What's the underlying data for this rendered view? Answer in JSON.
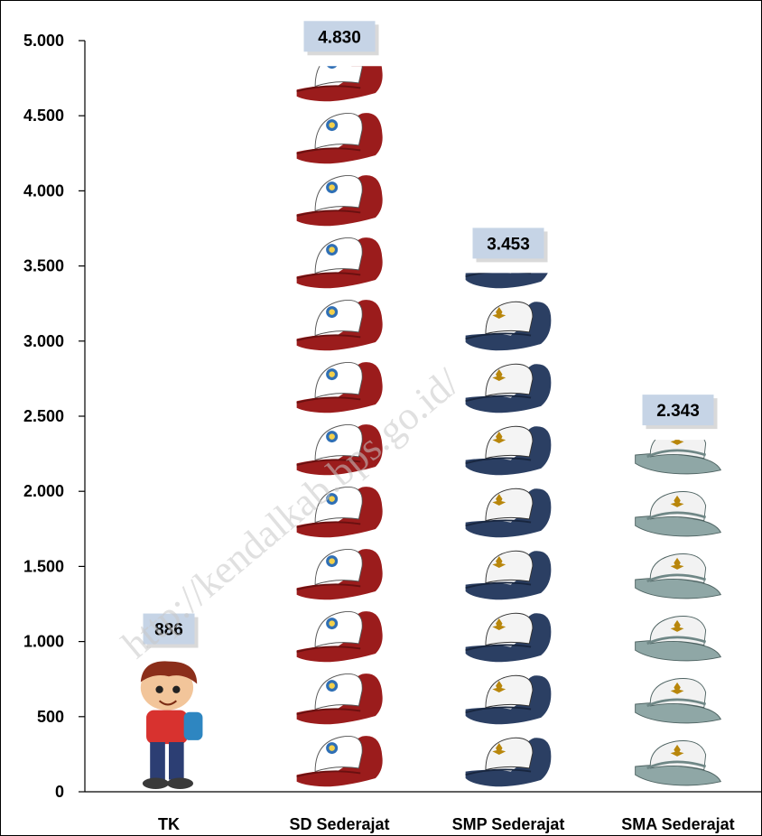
{
  "watermark": "http://kendalkab.bps.go.id/",
  "chart_data": {
    "type": "bar",
    "title": "",
    "xlabel": "",
    "ylabel": "",
    "categories": [
      "TK",
      "SD Sederajat",
      "SMP Sederajat",
      "SMA Sederajat"
    ],
    "values": [
      886,
      4830,
      3453,
      2343
    ],
    "value_labels": [
      "886",
      "4.830",
      "3.453",
      "2.343"
    ],
    "ylim": [
      0,
      5000
    ],
    "yticks": [
      0,
      500,
      1000,
      1500,
      2000,
      2500,
      3000,
      3500,
      4000,
      4500,
      5000
    ],
    "ytick_labels": [
      "0",
      "500",
      "1.000",
      "1.500",
      "2.000",
      "2.500",
      "3.000",
      "3.500",
      "4.000",
      "4.500",
      "5.000"
    ],
    "grid": false,
    "legend": "none",
    "bar_icons": [
      "student-child-icon",
      "red-cap-icon",
      "navy-cap-icon",
      "grey-cap-icon"
    ],
    "colors": {
      "sd_cap": "#9b1c1c",
      "smp_cap": "#2b3f63",
      "sma_cap": "#8fa7a6",
      "label_box": "#c6d4e6",
      "badge_red": "#c0392b",
      "badge_gold": "#b8860b"
    }
  }
}
